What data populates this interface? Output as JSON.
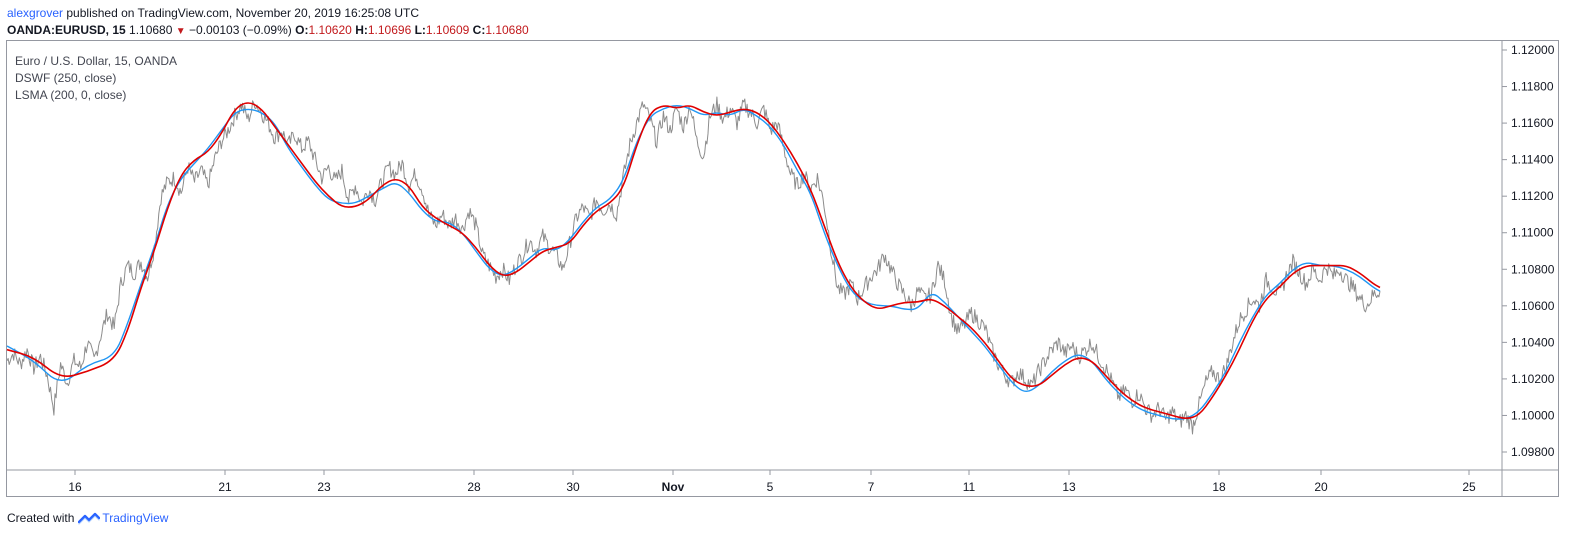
{
  "header": {
    "user": "alexgrover",
    "published_text": "published on TradingView.com, November 20, 2019 16:25:08 UTC"
  },
  "quote": {
    "symbol": "OANDA:EURUSD, 15",
    "last": "1.10680",
    "change": "−0.00103 (−0.09%)",
    "open_label": "O:",
    "open": "1.10620",
    "high_label": "H:",
    "high": "1.10696",
    "low_label": "L:",
    "low": "1.10609",
    "close_label": "C:",
    "close": "1.10680",
    "direction_icon": "triangle-down-icon",
    "down_color": "#c2191c"
  },
  "legend": {
    "title": "Euro / U.S. Dollar, 15, OANDA",
    "indicator_1": "DSWF (250, close)",
    "indicator_2": "LSMA (200, 0, close)"
  },
  "footer": {
    "created_with": "Created with",
    "brand": "TradingView",
    "logo_icon": "tradingview-logo-icon"
  },
  "chart_data": {
    "type": "line",
    "title": "Euro / U.S. Dollar, 15, OANDA",
    "xlabel": "",
    "ylabel": "",
    "ylim": [
      1.0974,
      1.1204
    ],
    "y_ticks": [
      "1.09800",
      "1.10000",
      "1.10200",
      "1.10400",
      "1.10600",
      "1.10800",
      "1.11000",
      "1.11200",
      "1.11400",
      "1.11600",
      "1.11800",
      "1.12000"
    ],
    "x_ticks": [
      "16",
      "21",
      "23",
      "28",
      "30",
      "Nov",
      "5",
      "7",
      "11",
      "13",
      "18",
      "20",
      "25"
    ],
    "grid": false,
    "series_colors": {
      "price": "#8c8c8c",
      "DSWF": "#2196f3",
      "LSMA": "#e00000"
    },
    "price_path": [
      [
        0,
        1.103
      ],
      [
        1,
        1.1034
      ],
      [
        2,
        1.1028
      ],
      [
        3,
        1.1036
      ],
      [
        4,
        1.1026
      ],
      [
        5,
        1.1032
      ],
      [
        6,
        1.1022
      ],
      [
        7,
        1.1004
      ],
      [
        8,
        1.1028
      ],
      [
        9,
        1.1018
      ],
      [
        10,
        1.103
      ],
      [
        11,
        1.1026
      ],
      [
        12,
        1.104
      ],
      [
        13,
        1.103
      ],
      [
        14,
        1.1044
      ],
      [
        15,
        1.1056
      ],
      [
        16,
        1.1048
      ],
      [
        17,
        1.1072
      ],
      [
        18,
        1.1082
      ],
      [
        19,
        1.1078
      ],
      [
        20,
        1.1084
      ],
      [
        21,
        1.1076
      ],
      [
        22,
        1.1092
      ],
      [
        23,
        1.112
      ],
      [
        24,
        1.1128
      ],
      [
        25,
        1.113
      ],
      [
        26,
        1.1122
      ],
      [
        27,
        1.1136
      ],
      [
        28,
        1.1128
      ],
      [
        29,
        1.1134
      ],
      [
        30,
        1.1126
      ],
      [
        31,
        1.114
      ],
      [
        32,
        1.115
      ],
      [
        33,
        1.1156
      ],
      [
        34,
        1.1164
      ],
      [
        35,
        1.117
      ],
      [
        36,
        1.1162
      ],
      [
        37,
        1.1172
      ],
      [
        38,
        1.1166
      ],
      [
        39,
        1.116
      ],
      [
        40,
        1.1152
      ],
      [
        41,
        1.1156
      ],
      [
        42,
        1.1148
      ],
      [
        43,
        1.1154
      ],
      [
        44,
        1.1146
      ],
      [
        45,
        1.115
      ],
      [
        46,
        1.114
      ],
      [
        47,
        1.113
      ],
      [
        48,
        1.1136
      ],
      [
        49,
        1.1128
      ],
      [
        50,
        1.1134
      ],
      [
        51,
        1.1118
      ],
      [
        52,
        1.1126
      ],
      [
        53,
        1.1116
      ],
      [
        54,
        1.1124
      ],
      [
        55,
        1.1118
      ],
      [
        56,
        1.1128
      ],
      [
        57,
        1.1136
      ],
      [
        58,
        1.1132
      ],
      [
        59,
        1.1138
      ],
      [
        60,
        1.1126
      ],
      [
        61,
        1.1132
      ],
      [
        62,
        1.1124
      ],
      [
        63,
        1.111
      ],
      [
        64,
        1.1104
      ],
      [
        65,
        1.111
      ],
      [
        66,
        1.1104
      ],
      [
        67,
        1.1108
      ],
      [
        68,
        1.1102
      ],
      [
        69,
        1.1112
      ],
      [
        70,
        1.1104
      ],
      [
        71,
        1.1088
      ],
      [
        72,
        1.1082
      ],
      [
        73,
        1.1076
      ],
      [
        74,
        1.108
      ],
      [
        75,
        1.1074
      ],
      [
        76,
        1.1082
      ],
      [
        77,
        1.1088
      ],
      [
        78,
        1.1096
      ],
      [
        79,
        1.109
      ],
      [
        80,
        1.1098
      ],
      [
        81,
        1.1092
      ],
      [
        82,
        1.1088
      ],
      [
        83,
        1.108
      ],
      [
        84,
        1.1094
      ],
      [
        85,
        1.1108
      ],
      [
        86,
        1.1114
      ],
      [
        87,
        1.1108
      ],
      [
        88,
        1.1118
      ],
      [
        89,
        1.1112
      ],
      [
        90,
        1.1116
      ],
      [
        91,
        1.111
      ],
      [
        92,
        1.113
      ],
      [
        93,
        1.1148
      ],
      [
        94,
        1.116
      ],
      [
        95,
        1.117
      ],
      [
        96,
        1.1162
      ],
      [
        97,
        1.115
      ],
      [
        98,
        1.1164
      ],
      [
        99,
        1.1156
      ],
      [
        100,
        1.1168
      ],
      [
        101,
        1.1158
      ],
      [
        102,
        1.117
      ],
      [
        103,
        1.115
      ],
      [
        104,
        1.1142
      ],
      [
        105,
        1.1164
      ],
      [
        106,
        1.117
      ],
      [
        107,
        1.1162
      ],
      [
        108,
        1.1168
      ],
      [
        109,
        1.116
      ],
      [
        110,
        1.117
      ],
      [
        111,
        1.1166
      ],
      [
        112,
        1.116
      ],
      [
        113,
        1.1168
      ],
      [
        114,
        1.1156
      ],
      [
        115,
        1.116
      ],
      [
        116,
        1.1146
      ],
      [
        117,
        1.1132
      ],
      [
        118,
        1.1126
      ],
      [
        119,
        1.1132
      ],
      [
        120,
        1.1124
      ],
      [
        121,
        1.113
      ],
      [
        122,
        1.1116
      ],
      [
        123,
        1.1092
      ],
      [
        124,
        1.107
      ],
      [
        125,
        1.1066
      ],
      [
        126,
        1.1072
      ],
      [
        127,
        1.1064
      ],
      [
        128,
        1.107
      ],
      [
        129,
        1.1076
      ],
      [
        130,
        1.108
      ],
      [
        131,
        1.1088
      ],
      [
        132,
        1.108
      ],
      [
        133,
        1.1072
      ],
      [
        134,
        1.1066
      ],
      [
        135,
        1.106
      ],
      [
        136,
        1.1068
      ],
      [
        137,
        1.1064
      ],
      [
        138,
        1.1066
      ],
      [
        139,
        1.1082
      ],
      [
        140,
        1.1074
      ],
      [
        141,
        1.1054
      ],
      [
        142,
        1.1046
      ],
      [
        143,
        1.105
      ],
      [
        144,
        1.1056
      ],
      [
        145,
        1.1052
      ],
      [
        146,
        1.1048
      ],
      [
        147,
        1.1036
      ],
      [
        148,
        1.1028
      ],
      [
        149,
        1.1022
      ],
      [
        150,
        1.1018
      ],
      [
        151,
        1.1024
      ],
      [
        152,
        1.102
      ],
      [
        153,
        1.1016
      ],
      [
        154,
        1.1024
      ],
      [
        155,
        1.103
      ],
      [
        156,
        1.1036
      ],
      [
        157,
        1.104
      ],
      [
        158,
        1.1034
      ],
      [
        159,
        1.1038
      ],
      [
        160,
        1.1032
      ],
      [
        161,
        1.1036
      ],
      [
        162,
        1.104
      ],
      [
        163,
        1.1032
      ],
      [
        164,
        1.1026
      ],
      [
        165,
        1.1018
      ],
      [
        166,
        1.101
      ],
      [
        167,
        1.1014
      ],
      [
        168,
        1.1008
      ],
      [
        169,
        1.1012
      ],
      [
        170,
        1.1004
      ],
      [
        171,
        1.1
      ],
      [
        172,
        1.1004
      ],
      [
        173,
        1.0998
      ],
      [
        174,
        1.1002
      ],
      [
        175,
        1.0996
      ],
      [
        176,
        1.1
      ],
      [
        177,
        1.0994
      ],
      [
        178,
        1.1006
      ],
      [
        179,
        1.1018
      ],
      [
        180,
        1.1024
      ],
      [
        181,
        1.102
      ],
      [
        182,
        1.1026
      ],
      [
        183,
        1.104
      ],
      [
        184,
        1.1052
      ],
      [
        185,
        1.1058
      ],
      [
        186,
        1.1064
      ],
      [
        187,
        1.106
      ],
      [
        188,
        1.1074
      ],
      [
        189,
        1.107
      ],
      [
        190,
        1.1066
      ],
      [
        191,
        1.1076
      ],
      [
        192,
        1.1084
      ],
      [
        193,
        1.1078
      ],
      [
        194,
        1.1072
      ],
      [
        195,
        1.108
      ],
      [
        196,
        1.1074
      ],
      [
        197,
        1.1082
      ],
      [
        198,
        1.1076
      ],
      [
        199,
        1.108
      ],
      [
        200,
        1.1074
      ],
      [
        201,
        1.107
      ],
      [
        202,
        1.1064
      ],
      [
        203,
        1.106
      ],
      [
        204,
        1.1066
      ],
      [
        205,
        1.1068
      ]
    ],
    "lsma_path": [
      [
        0,
        1.1036
      ],
      [
        4,
        1.1032
      ],
      [
        8,
        1.102
      ],
      [
        12,
        1.1024
      ],
      [
        16,
        1.103
      ],
      [
        18,
        1.1046
      ],
      [
        20,
        1.107
      ],
      [
        22,
        1.109
      ],
      [
        24,
        1.1114
      ],
      [
        26,
        1.1132
      ],
      [
        28,
        1.114
      ],
      [
        30,
        1.1144
      ],
      [
        32,
        1.1154
      ],
      [
        34,
        1.1168
      ],
      [
        36,
        1.1172
      ],
      [
        38,
        1.1168
      ],
      [
        40,
        1.1158
      ],
      [
        42,
        1.1148
      ],
      [
        44,
        1.1138
      ],
      [
        46,
        1.1128
      ],
      [
        48,
        1.112
      ],
      [
        50,
        1.1114
      ],
      [
        52,
        1.1114
      ],
      [
        54,
        1.1118
      ],
      [
        56,
        1.1126
      ],
      [
        58,
        1.113
      ],
      [
        60,
        1.1126
      ],
      [
        62,
        1.1114
      ],
      [
        64,
        1.1108
      ],
      [
        66,
        1.1104
      ],
      [
        68,
        1.11
      ],
      [
        70,
        1.1092
      ],
      [
        72,
        1.1082
      ],
      [
        74,
        1.1076
      ],
      [
        76,
        1.1078
      ],
      [
        78,
        1.1084
      ],
      [
        80,
        1.109
      ],
      [
        82,
        1.1092
      ],
      [
        84,
        1.1094
      ],
      [
        86,
        1.1104
      ],
      [
        88,
        1.1112
      ],
      [
        90,
        1.1116
      ],
      [
        92,
        1.1124
      ],
      [
        94,
        1.1148
      ],
      [
        96,
        1.1166
      ],
      [
        98,
        1.117
      ],
      [
        100,
        1.1168
      ],
      [
        102,
        1.117
      ],
      [
        104,
        1.1166
      ],
      [
        106,
        1.1164
      ],
      [
        108,
        1.1166
      ],
      [
        110,
        1.1168
      ],
      [
        112,
        1.1166
      ],
      [
        114,
        1.116
      ],
      [
        116,
        1.115
      ],
      [
        118,
        1.1138
      ],
      [
        120,
        1.1124
      ],
      [
        122,
        1.1104
      ],
      [
        124,
        1.1084
      ],
      [
        126,
        1.107
      ],
      [
        128,
        1.1062
      ],
      [
        130,
        1.1058
      ],
      [
        132,
        1.106
      ],
      [
        134,
        1.1062
      ],
      [
        136,
        1.1062
      ],
      [
        138,
        1.1064
      ],
      [
        140,
        1.106
      ],
      [
        142,
        1.1054
      ],
      [
        144,
        1.1048
      ],
      [
        146,
        1.104
      ],
      [
        148,
        1.103
      ],
      [
        150,
        1.102
      ],
      [
        152,
        1.1016
      ],
      [
        154,
        1.1016
      ],
      [
        156,
        1.1022
      ],
      [
        158,
        1.1028
      ],
      [
        160,
        1.1032
      ],
      [
        162,
        1.103
      ],
      [
        164,
        1.1022
      ],
      [
        166,
        1.1014
      ],
      [
        168,
        1.1008
      ],
      [
        170,
        1.1004
      ],
      [
        172,
        1.1002
      ],
      [
        174,
        1.1
      ],
      [
        176,
        1.0998
      ],
      [
        178,
        1.1
      ],
      [
        180,
        1.101
      ],
      [
        182,
        1.1022
      ],
      [
        184,
        1.1036
      ],
      [
        186,
        1.1052
      ],
      [
        188,
        1.1064
      ],
      [
        190,
        1.107
      ],
      [
        192,
        1.1078
      ],
      [
        194,
        1.1082
      ],
      [
        196,
        1.1082
      ],
      [
        198,
        1.1082
      ],
      [
        200,
        1.1082
      ],
      [
        202,
        1.1078
      ],
      [
        204,
        1.1072
      ],
      [
        205,
        1.107
      ]
    ],
    "dswf_path": [
      [
        0,
        1.1038
      ],
      [
        4,
        1.103
      ],
      [
        8,
        1.1016
      ],
      [
        12,
        1.1028
      ],
      [
        16,
        1.1032
      ],
      [
        18,
        1.105
      ],
      [
        20,
        1.1072
      ],
      [
        22,
        1.1092
      ],
      [
        24,
        1.1116
      ],
      [
        26,
        1.113
      ],
      [
        28,
        1.1138
      ],
      [
        30,
        1.1146
      ],
      [
        32,
        1.1156
      ],
      [
        34,
        1.1166
      ],
      [
        36,
        1.1168
      ],
      [
        38,
        1.1166
      ],
      [
        40,
        1.116
      ],
      [
        42,
        1.1146
      ],
      [
        44,
        1.1136
      ],
      [
        46,
        1.1126
      ],
      [
        48,
        1.1118
      ],
      [
        50,
        1.1116
      ],
      [
        52,
        1.1116
      ],
      [
        54,
        1.112
      ],
      [
        56,
        1.1124
      ],
      [
        58,
        1.1128
      ],
      [
        60,
        1.1122
      ],
      [
        62,
        1.1112
      ],
      [
        64,
        1.1106
      ],
      [
        66,
        1.1106
      ],
      [
        68,
        1.11
      ],
      [
        70,
        1.109
      ],
      [
        72,
        1.108
      ],
      [
        74,
        1.1076
      ],
      [
        76,
        1.108
      ],
      [
        78,
        1.1086
      ],
      [
        80,
        1.1092
      ],
      [
        82,
        1.109
      ],
      [
        84,
        1.1096
      ],
      [
        86,
        1.1106
      ],
      [
        88,
        1.1114
      ],
      [
        90,
        1.1118
      ],
      [
        92,
        1.1128
      ],
      [
        94,
        1.115
      ],
      [
        96,
        1.1164
      ],
      [
        98,
        1.1168
      ],
      [
        100,
        1.117
      ],
      [
        102,
        1.1168
      ],
      [
        104,
        1.1164
      ],
      [
        106,
        1.1166
      ],
      [
        108,
        1.1164
      ],
      [
        110,
        1.1168
      ],
      [
        112,
        1.1164
      ],
      [
        114,
        1.1158
      ],
      [
        116,
        1.1148
      ],
      [
        118,
        1.1134
      ],
      [
        120,
        1.1122
      ],
      [
        122,
        1.11
      ],
      [
        124,
        1.1082
      ],
      [
        126,
        1.1068
      ],
      [
        128,
        1.1062
      ],
      [
        130,
        1.106
      ],
      [
        132,
        1.106
      ],
      [
        134,
        1.1058
      ],
      [
        136,
        1.1058
      ],
      [
        138,
        1.1068
      ],
      [
        140,
        1.1062
      ],
      [
        142,
        1.1054
      ],
      [
        144,
        1.1046
      ],
      [
        146,
        1.1038
      ],
      [
        148,
        1.1028
      ],
      [
        150,
        1.1018
      ],
      [
        152,
        1.1012
      ],
      [
        154,
        1.1016
      ],
      [
        156,
        1.1024
      ],
      [
        158,
        1.103
      ],
      [
        160,
        1.1034
      ],
      [
        162,
        1.103
      ],
      [
        164,
        1.102
      ],
      [
        166,
        1.1012
      ],
      [
        168,
        1.1006
      ],
      [
        170,
        1.1002
      ],
      [
        172,
        1.1
      ],
      [
        174,
        1.0998
      ],
      [
        176,
        1.0998
      ],
      [
        178,
        1.1002
      ],
      [
        180,
        1.1012
      ],
      [
        182,
        1.1024
      ],
      [
        184,
        1.104
      ],
      [
        186,
        1.1054
      ],
      [
        188,
        1.1066
      ],
      [
        190,
        1.1072
      ],
      [
        192,
        1.108
      ],
      [
        194,
        1.1084
      ],
      [
        196,
        1.1082
      ],
      [
        198,
        1.1082
      ],
      [
        200,
        1.108
      ],
      [
        202,
        1.1076
      ],
      [
        204,
        1.107
      ],
      [
        205,
        1.1068
      ]
    ]
  }
}
